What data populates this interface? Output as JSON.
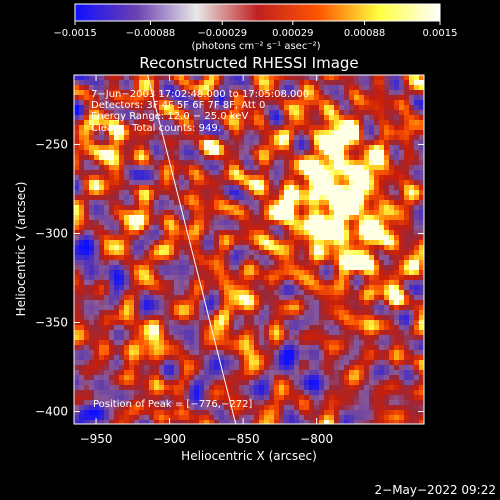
{
  "chart_data": {
    "type": "heatmap",
    "title": "Reconstructed RHESSI Image",
    "xlabel": "Heliocentric X (arcsec)",
    "ylabel": "Heliocentric Y (arcsec)",
    "xlim": [
      -965,
      -727
    ],
    "ylim": [
      -407,
      -211
    ],
    "x_ticks": [
      -950,
      -900,
      -850,
      -800
    ],
    "x_tick_labels": [
      "−950",
      "−900",
      "−850",
      "−800"
    ],
    "y_ticks": [
      -250,
      -300,
      -350,
      -400
    ],
    "y_tick_labels": [
      "−250",
      "−300",
      "−350",
      "−400"
    ],
    "colorbar": {
      "range": [
        -0.0015,
        0.0015
      ],
      "ticks": [
        -0.0015,
        -0.00088,
        -0.00029,
        0.00029,
        0.00088,
        0.0015
      ],
      "tick_labels": [
        "−0.0015",
        "−0.00088",
        "−0.00029",
        "0.00029",
        "0.00088",
        "0.0015"
      ],
      "units": "(photons cm⁻² s⁻¹ asec⁻²)",
      "colors": [
        "#1010ff",
        "#6a3fb0",
        "#e8e8e8",
        "#c02020",
        "#ff5500",
        "#ffff40",
        "#ffffff"
      ]
    },
    "annotations": {
      "time": "7−Jun−2003 17:02:48.000 to 17:05:08.000",
      "detectors": "Detectors: 3F 4F 5F 6F 7F 8F, Att 0",
      "energy": "Energy Range: 12.0 − 25.0 keV",
      "clean": "Clean    Total counts: 949.",
      "peak": "Position of Peak = [−776,−272]"
    },
    "limb_line": {
      "x": [
        -915,
        -855
      ],
      "y": [
        -211,
        -407
      ]
    },
    "peak_position": [
      -776,
      -272
    ]
  },
  "footer": {
    "timestamp": "2−May−2022 09:22"
  }
}
